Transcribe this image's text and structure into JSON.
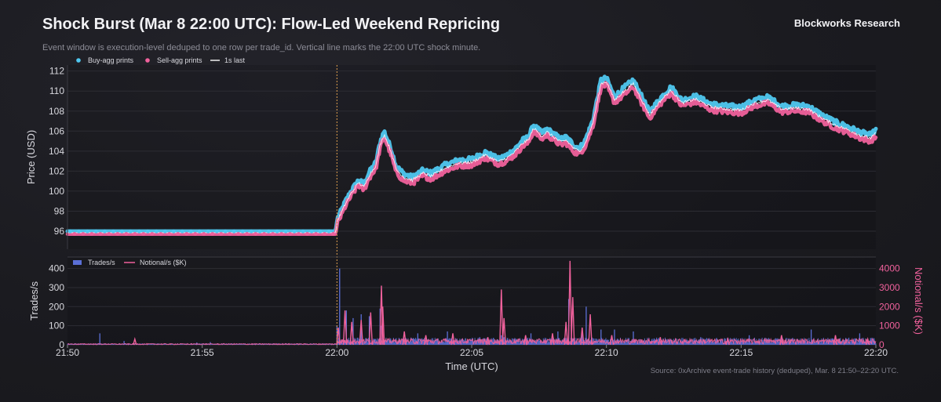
{
  "title": "Shock Burst (Mar 8 22:00 UTC): Flow-Led Weekend Repricing",
  "subtitle": "Event window is execution-level deduped to one row per trade_id. Vertical line marks the 22:00 UTC shock minute.",
  "brand": "Blockworks Research",
  "source": "Source: 0xArchive event-trade history (deduped), Mar. 8 21:50–22:20 UTC.",
  "colors": {
    "buy": "#4fc8f0",
    "sell": "#f0619c",
    "last": "#ffffff",
    "trades": "#5b6fd6",
    "notional": "#f0619c",
    "shock_line": "#e0a050",
    "grid": "#2c2c33",
    "axis_text": "#d8d8de"
  },
  "chart_data": [
    {
      "type": "scatter",
      "panel": "price",
      "ylabel": "Price (USD)",
      "ylim": [
        94.2,
        112.6
      ],
      "yticks": [
        96,
        98,
        100,
        102,
        104,
        106,
        108,
        110,
        112
      ],
      "xlim_minutes": [
        0,
        30
      ],
      "shock_minute": 10,
      "grid": true,
      "legend_position": "top-left",
      "legend": [
        "Buy-agg prints",
        "Sell-agg prints",
        "1s last"
      ],
      "series": [
        {
          "name": "Buy-agg prints",
          "x_minutes": [
            0,
            5,
            9.95,
            10.02,
            10.15,
            10.3,
            10.5,
            10.8,
            11,
            11.2,
            11.45,
            11.6,
            11.75,
            12,
            12.2,
            12.5,
            12.8,
            13.2,
            13.5,
            14,
            14.5,
            15,
            15.5,
            16,
            16.3,
            16.6,
            16.9,
            17.1,
            17.3,
            17.6,
            17.8,
            18.1,
            18.3,
            18.5,
            18.8,
            19,
            19.2,
            19.5,
            19.8,
            20,
            20.3,
            20.6,
            21,
            21.3,
            21.6,
            22,
            22.4,
            22.8,
            23.3,
            23.9,
            24.5,
            25,
            25.5,
            26,
            26.5,
            27,
            27.5,
            28,
            28.5,
            29,
            29.4,
            29.8,
            30
          ],
          "values": [
            95.9,
            95.9,
            95.9,
            97.2,
            97.9,
            98.8,
            99.8,
            101.0,
            100.6,
            101.8,
            102.8,
            104.8,
            105.9,
            104.2,
            102.4,
            101.6,
            101.3,
            102.0,
            101.7,
            102.5,
            103.0,
            103.1,
            103.8,
            103.1,
            103.5,
            104.1,
            105.0,
            105.3,
            106.5,
            105.7,
            106.1,
            105.5,
            105.1,
            105.3,
            104.5,
            104.2,
            104.9,
            107.0,
            111.0,
            111.2,
            109.3,
            110.1,
            111.0,
            109.4,
            107.8,
            109.2,
            110.3,
            109.0,
            109.4,
            108.6,
            108.4,
            108.3,
            109.0,
            109.3,
            108.4,
            108.5,
            108.4,
            107.5,
            106.8,
            106.3,
            105.8,
            105.5,
            106.0
          ]
        },
        {
          "name": "Sell-agg prints",
          "x_minutes": [
            0,
            5,
            9.95,
            10.02,
            10.15,
            10.3,
            10.5,
            10.8,
            11,
            11.2,
            11.45,
            11.6,
            11.75,
            12,
            12.2,
            12.5,
            12.8,
            13.2,
            13.5,
            14,
            14.5,
            15,
            15.5,
            16,
            16.3,
            16.6,
            16.9,
            17.1,
            17.3,
            17.6,
            17.8,
            18.1,
            18.3,
            18.5,
            18.8,
            19,
            19.2,
            19.5,
            19.8,
            20,
            20.3,
            20.6,
            21,
            21.3,
            21.6,
            22,
            22.4,
            22.8,
            23.3,
            23.9,
            24.5,
            25,
            25.5,
            26,
            26.5,
            27,
            27.5,
            28,
            28.5,
            29,
            29.4,
            29.8,
            30
          ],
          "values": [
            95.8,
            95.8,
            95.8,
            97.0,
            97.6,
            98.5,
            99.5,
            100.7,
            100.2,
            101.4,
            102.4,
            104.4,
            105.5,
            103.8,
            101.9,
            101.1,
            100.9,
            101.6,
            101.3,
            102.1,
            102.6,
            102.7,
            103.4,
            102.8,
            103.1,
            103.7,
            104.6,
            104.9,
            106.1,
            105.3,
            105.7,
            105.1,
            104.7,
            104.9,
            104.0,
            103.8,
            104.5,
            106.6,
            110.5,
            110.7,
            108.9,
            109.6,
            110.5,
            108.9,
            107.4,
            108.8,
            109.9,
            108.6,
            109.0,
            108.2,
            108.0,
            107.9,
            108.6,
            108.9,
            108.0,
            108.1,
            108.0,
            107.1,
            106.4,
            105.9,
            105.4,
            105.1,
            105.5
          ]
        },
        {
          "name": "1s last",
          "x_minutes": [
            0,
            5,
            9.95,
            10.02,
            10.15,
            10.3,
            10.5,
            10.8,
            11,
            11.2,
            11.45,
            11.6,
            11.75,
            12,
            12.2,
            12.5,
            12.8,
            13.2,
            13.5,
            14,
            14.5,
            15,
            15.5,
            16,
            16.3,
            16.6,
            16.9,
            17.1,
            17.3,
            17.6,
            17.8,
            18.1,
            18.3,
            18.5,
            18.8,
            19,
            19.2,
            19.5,
            19.8,
            20,
            20.3,
            20.6,
            21,
            21.3,
            21.6,
            22,
            22.4,
            22.8,
            23.3,
            23.9,
            24.5,
            25,
            25.5,
            26,
            26.5,
            27,
            27.5,
            28,
            28.5,
            29,
            29.4,
            29.8,
            30
          ],
          "values": [
            95.85,
            95.85,
            95.85,
            97.1,
            97.75,
            98.65,
            99.65,
            100.85,
            100.4,
            101.6,
            102.6,
            104.6,
            105.7,
            104.0,
            102.15,
            101.35,
            101.1,
            101.8,
            101.5,
            102.3,
            102.8,
            102.9,
            103.6,
            102.95,
            103.3,
            103.9,
            104.8,
            105.1,
            106.3,
            105.5,
            105.9,
            105.3,
            104.9,
            105.1,
            104.25,
            104.0,
            104.7,
            106.8,
            110.75,
            110.95,
            109.1,
            109.85,
            110.75,
            109.15,
            107.6,
            109.0,
            110.1,
            108.8,
            109.2,
            108.4,
            108.2,
            108.1,
            108.8,
            109.1,
            108.2,
            108.3,
            108.2,
            107.3,
            106.6,
            106.1,
            105.6,
            105.3,
            105.75
          ]
        }
      ]
    },
    {
      "type": "bar",
      "panel": "activity",
      "xlabel": "Time (UTC)",
      "x_tick_labels": [
        "21:50",
        "21:55",
        "22:00",
        "22:05",
        "22:10",
        "22:15",
        "22:20"
      ],
      "x_tick_minutes": [
        0,
        5,
        10,
        15,
        20,
        25,
        30
      ],
      "ylabel": "Trades/s",
      "ylim": [
        0,
        460
      ],
      "yticks": [
        0,
        100,
        200,
        300,
        400
      ],
      "ylabel_right": "Notional/s ($K)",
      "ylim_right": [
        0,
        4600
      ],
      "yticks_right": [
        0,
        1000,
        2000,
        3000,
        4000
      ],
      "legend_position": "top-left",
      "legend": [
        "Trades/s",
        "Notional/s ($K)"
      ],
      "series": [
        {
          "name": "Trades/s",
          "spikes_minutes": [
            1.2,
            2.1,
            4.8,
            5.3,
            10.0,
            10.1,
            10.35,
            10.6,
            10.9,
            11.2,
            11.6,
            11.65,
            13.0,
            14.1,
            15.3,
            16.1,
            16.2,
            17.2,
            18.2,
            18.6,
            18.7,
            19.1,
            19.25,
            19.8,
            20.3,
            21.0,
            23.5,
            25.3,
            27.6,
            29.4
          ],
          "spikes_values": [
            60,
            20,
            12,
            14,
            100,
            400,
            180,
            140,
            160,
            150,
            190,
            100,
            60,
            70,
            40,
            50,
            40,
            60,
            70,
            240,
            150,
            90,
            200,
            80,
            80,
            70,
            40,
            50,
            80,
            60
          ],
          "baseline_before": 5,
          "baseline_after": 25
        },
        {
          "name": "Notional/s ($K)",
          "spikes_minutes": [
            2.5,
            10.05,
            10.3,
            10.55,
            10.9,
            11.25,
            11.65,
            11.7,
            12.5,
            13.3,
            14.3,
            15.6,
            16.1,
            16.2,
            17.0,
            18.0,
            18.5,
            18.65,
            18.75,
            19.1,
            19.4,
            20.2,
            22.0,
            24.5,
            26.5,
            28.5,
            29.7
          ],
          "spikes_values": [
            300,
            900,
            1800,
            1200,
            1300,
            1700,
            3100,
            2000,
            700,
            500,
            600,
            400,
            2900,
            1400,
            500,
            600,
            1200,
            4400,
            2500,
            900,
            1600,
            500,
            400,
            300,
            500,
            500,
            300
          ],
          "baseline_before": 40,
          "baseline_after": 200
        }
      ]
    }
  ]
}
